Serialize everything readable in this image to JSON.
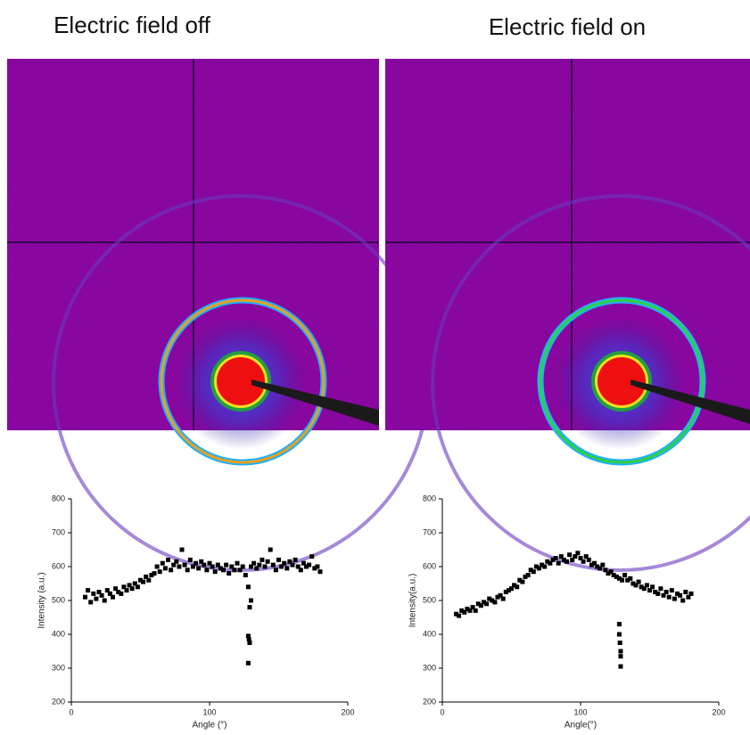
{
  "panels": [
    {
      "title": "Electric field off"
    },
    {
      "title": "Electric field on"
    }
  ],
  "chart_data": [
    {
      "type": "scatter",
      "xlabel": "Angle (°)",
      "ylabel": "Intensity (a.u.)",
      "color": "#000000",
      "xlim": [
        0,
        200
      ],
      "ylim": [
        200,
        800
      ],
      "xticks": [
        0,
        100,
        200
      ],
      "yticks": [
        200,
        300,
        400,
        500,
        600,
        700,
        800
      ],
      "x": [
        10,
        12,
        14,
        16,
        18,
        20,
        22,
        24,
        26,
        28,
        30,
        32,
        34,
        36,
        38,
        40,
        42,
        44,
        46,
        48,
        50,
        52,
        54,
        56,
        58,
        60,
        62,
        64,
        66,
        68,
        70,
        72,
        74,
        76,
        78,
        80,
        82,
        84,
        86,
        88,
        90,
        92,
        94,
        96,
        98,
        100,
        102,
        104,
        106,
        108,
        110,
        112,
        114,
        116,
        118,
        120,
        122,
        124,
        126,
        128,
        130,
        132,
        134,
        136,
        138,
        140,
        142,
        144,
        146,
        148,
        150,
        152,
        154,
        156,
        158,
        160,
        162,
        164,
        166,
        168,
        170,
        172,
        174,
        176,
        178,
        180,
        128,
        128.5,
        129,
        128,
        129,
        130
      ],
      "y": [
        510,
        530,
        495,
        520,
        505,
        525,
        515,
        500,
        530,
        520,
        510,
        535,
        525,
        520,
        540,
        530,
        545,
        535,
        550,
        540,
        560,
        555,
        570,
        560,
        575,
        580,
        600,
        585,
        610,
        595,
        620,
        590,
        605,
        615,
        600,
        650,
        605,
        590,
        620,
        600,
        610,
        595,
        615,
        605,
        590,
        610,
        600,
        585,
        605,
        595,
        590,
        605,
        580,
        600,
        590,
        610,
        590,
        600,
        575,
        540,
        600,
        610,
        595,
        605,
        620,
        600,
        615,
        650,
        605,
        590,
        620,
        600,
        610,
        595,
        615,
        605,
        620,
        600,
        590,
        610,
        600,
        605,
        630,
        595,
        600,
        585,
        395,
        385,
        375,
        315,
        480,
        500
      ]
    },
    {
      "type": "scatter",
      "xlabel": "Angle(°)",
      "ylabel": "Intensity(a.u.)",
      "color": "#000000",
      "xlim": [
        0,
        200
      ],
      "ylim": [
        200,
        800
      ],
      "xticks": [
        0,
        100,
        200
      ],
      "yticks": [
        200,
        300,
        400,
        500,
        600,
        700,
        800
      ],
      "x": [
        10,
        12,
        14,
        16,
        18,
        20,
        22,
        24,
        26,
        28,
        30,
        32,
        34,
        36,
        38,
        40,
        42,
        44,
        46,
        48,
        50,
        52,
        54,
        56,
        58,
        60,
        62,
        64,
        66,
        68,
        70,
        72,
        74,
        76,
        78,
        80,
        82,
        84,
        86,
        88,
        90,
        92,
        94,
        96,
        98,
        100,
        102,
        104,
        106,
        108,
        110,
        112,
        114,
        116,
        118,
        120,
        122,
        124,
        126,
        128,
        130,
        132,
        134,
        136,
        138,
        140,
        142,
        144,
        146,
        148,
        150,
        152,
        154,
        156,
        158,
        160,
        162,
        164,
        166,
        168,
        170,
        172,
        174,
        176,
        178,
        180,
        128,
        128,
        128.5,
        129,
        129,
        129
      ],
      "y": [
        460,
        455,
        470,
        465,
        475,
        470,
        480,
        470,
        490,
        485,
        495,
        490,
        505,
        500,
        495,
        510,
        515,
        505,
        525,
        530,
        535,
        545,
        540,
        560,
        555,
        570,
        575,
        590,
        585,
        600,
        595,
        605,
        600,
        615,
        610,
        620,
        625,
        610,
        630,
        620,
        615,
        635,
        620,
        630,
        640,
        625,
        615,
        630,
        620,
        605,
        610,
        600,
        595,
        605,
        590,
        580,
        585,
        575,
        570,
        565,
        560,
        575,
        560,
        565,
        550,
        545,
        555,
        540,
        535,
        545,
        530,
        540,
        525,
        520,
        535,
        515,
        525,
        510,
        530,
        505,
        520,
        515,
        500,
        525,
        510,
        520,
        430,
        400,
        375,
        350,
        335,
        305
      ]
    }
  ]
}
